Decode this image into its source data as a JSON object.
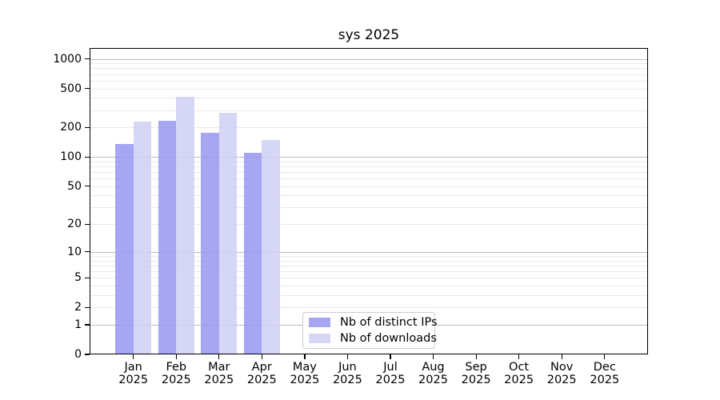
{
  "chart_data": {
    "type": "bar",
    "title": "sys 2025",
    "categories": [
      "Jan",
      "Feb",
      "Mar",
      "Apr",
      "May",
      "Jun",
      "Jul",
      "Aug",
      "Sep",
      "Oct",
      "Nov",
      "Dec"
    ],
    "category_year_suffix": "2025",
    "series": [
      {
        "name": "Nb of distinct IPs",
        "color": "#9696f0",
        "values": [
          135,
          235,
          178,
          110,
          0,
          0,
          0,
          0,
          0,
          0,
          0,
          0
        ]
      },
      {
        "name": "Nb of downloads",
        "color": "#cfcff6",
        "values": [
          230,
          415,
          285,
          150,
          0,
          0,
          0,
          0,
          0,
          0,
          0,
          0
        ]
      }
    ],
    "xlabel": "",
    "ylabel": "",
    "y_scale": "log1p",
    "y_ticks": [
      0,
      1,
      2,
      5,
      10,
      20,
      50,
      100,
      200,
      500,
      1000
    ],
    "y_major_gridlines": [
      1,
      10,
      100,
      1000
    ],
    "ylim": [
      0,
      1320
    ],
    "grid": true,
    "legend_position": "lower center, inside plot",
    "colors": {
      "major_grid": "#bdbdbd",
      "minor_grid": "#eaeaea",
      "axis": "#000000",
      "background": "#ffffff"
    }
  }
}
